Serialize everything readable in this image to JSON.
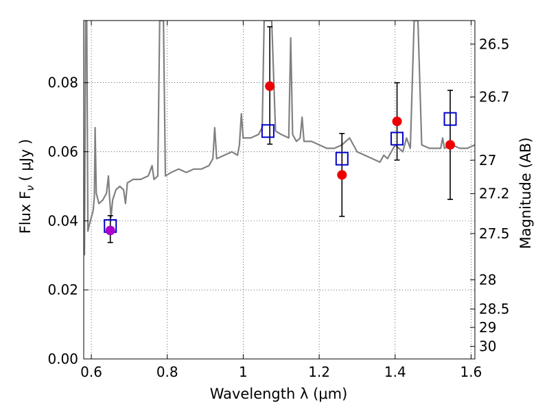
{
  "chart_data": {
    "type": "scatter",
    "xlabel": "Wavelength  λ (μm)",
    "ylabel": "Flux  F",
    "ylabel_subscript": "ν",
    "ylabel_unit": "( μJy )",
    "y2label": "Magnitude (AB)",
    "xlim": [
      0.58,
      1.61
    ],
    "ylim": [
      0.0,
      0.098
    ],
    "grid": true,
    "x_ticks": [
      0.6,
      0.8,
      1.0,
      1.2,
      1.4,
      1.6
    ],
    "x_tick_labels": [
      "0.6",
      "0.8",
      "1",
      "1.2",
      "1.4",
      "1.6"
    ],
    "y_ticks": [
      0.0,
      0.02,
      0.04,
      0.06,
      0.08
    ],
    "y_tick_labels": [
      "0.00",
      "0.02",
      "0.04",
      "0.06",
      "0.08"
    ],
    "mag_ticks": [
      26.5,
      26.7,
      27,
      27.2,
      27.5,
      28,
      28.5,
      29,
      30
    ],
    "mag_tick_labels": [
      "26.5",
      "26.7",
      "27",
      "27.2",
      "27.5",
      "28",
      "28.5",
      "29",
      "30"
    ],
    "series": [
      {
        "kind": "spectrum",
        "color": "#808080",
        "points": [
          [
            0.582,
            0.03
          ],
          [
            0.585,
            0.098
          ],
          [
            0.588,
            0.098
          ],
          [
            0.591,
            0.037
          ],
          [
            0.595,
            0.039
          ],
          [
            0.6,
            0.041
          ],
          [
            0.605,
            0.043
          ],
          [
            0.608,
            0.047
          ],
          [
            0.61,
            0.067
          ],
          [
            0.613,
            0.048
          ],
          [
            0.62,
            0.045
          ],
          [
            0.63,
            0.046
          ],
          [
            0.64,
            0.048
          ],
          [
            0.645,
            0.053
          ],
          [
            0.648,
            0.047
          ],
          [
            0.652,
            0.041
          ],
          [
            0.656,
            0.046
          ],
          [
            0.665,
            0.049
          ],
          [
            0.675,
            0.05
          ],
          [
            0.685,
            0.049
          ],
          [
            0.69,
            0.045
          ],
          [
            0.695,
            0.051
          ],
          [
            0.71,
            0.052
          ],
          [
            0.73,
            0.052
          ],
          [
            0.75,
            0.053
          ],
          [
            0.76,
            0.056
          ],
          [
            0.765,
            0.052
          ],
          [
            0.775,
            0.053
          ],
          [
            0.78,
            0.098
          ],
          [
            0.79,
            0.098
          ],
          [
            0.795,
            0.053
          ],
          [
            0.81,
            0.054
          ],
          [
            0.83,
            0.055
          ],
          [
            0.85,
            0.054
          ],
          [
            0.87,
            0.055
          ],
          [
            0.89,
            0.055
          ],
          [
            0.91,
            0.056
          ],
          [
            0.92,
            0.058
          ],
          [
            0.925,
            0.067
          ],
          [
            0.93,
            0.058
          ],
          [
            0.95,
            0.059
          ],
          [
            0.97,
            0.06
          ],
          [
            0.985,
            0.059
          ],
          [
            0.99,
            0.062
          ],
          [
            0.995,
            0.071
          ],
          [
            1.0,
            0.064
          ],
          [
            1.02,
            0.064
          ],
          [
            1.04,
            0.065
          ],
          [
            1.05,
            0.067
          ],
          [
            1.055,
            0.098
          ],
          [
            1.075,
            0.098
          ],
          [
            1.085,
            0.066
          ],
          [
            1.1,
            0.065
          ],
          [
            1.12,
            0.064
          ],
          [
            1.125,
            0.093
          ],
          [
            1.13,
            0.065
          ],
          [
            1.14,
            0.063
          ],
          [
            1.15,
            0.064
          ],
          [
            1.155,
            0.07
          ],
          [
            1.16,
            0.063
          ],
          [
            1.18,
            0.063
          ],
          [
            1.2,
            0.062
          ],
          [
            1.22,
            0.061
          ],
          [
            1.24,
            0.061
          ],
          [
            1.26,
            0.062
          ],
          [
            1.28,
            0.064
          ],
          [
            1.3,
            0.06
          ],
          [
            1.32,
            0.059
          ],
          [
            1.34,
            0.058
          ],
          [
            1.36,
            0.057
          ],
          [
            1.37,
            0.059
          ],
          [
            1.38,
            0.058
          ],
          [
            1.4,
            0.062
          ],
          [
            1.42,
            0.06
          ],
          [
            1.43,
            0.064
          ],
          [
            1.44,
            0.061
          ],
          [
            1.45,
            0.098
          ],
          [
            1.46,
            0.098
          ],
          [
            1.47,
            0.062
          ],
          [
            1.49,
            0.061
          ],
          [
            1.51,
            0.061
          ],
          [
            1.52,
            0.061
          ],
          [
            1.525,
            0.064
          ],
          [
            1.53,
            0.061
          ],
          [
            1.55,
            0.062
          ],
          [
            1.57,
            0.061
          ],
          [
            1.59,
            0.061
          ],
          [
            1.61,
            0.062
          ]
        ]
      },
      {
        "kind": "model_points",
        "marker": "open-square",
        "color": "#0000cc",
        "x": [
          0.65,
          1.065,
          1.26,
          1.405,
          1.545
        ],
        "y": [
          0.0385,
          0.066,
          0.058,
          0.0638,
          0.0695
        ]
      },
      {
        "kind": "observed_points",
        "marker": "filled-circle",
        "color": "#ee0000",
        "x": [
          0.65,
          1.07,
          1.26,
          1.405,
          1.545
        ],
        "y": [
          0.0372,
          0.079,
          0.0533,
          0.0688,
          0.062
        ],
        "yerr_low": [
          0.0035,
          0.0168,
          0.012,
          0.0112,
          0.0158
        ],
        "yerr_high": [
          0.0043,
          0.0172,
          0.012,
          0.0112,
          0.0158
        ],
        "first_point_color": "#aa00cc"
      }
    ]
  }
}
